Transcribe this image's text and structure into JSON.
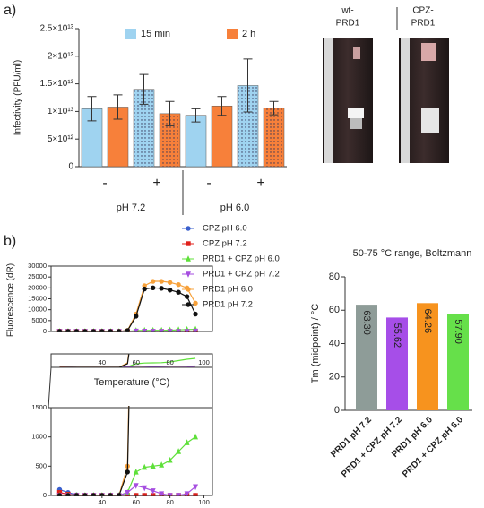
{
  "panel_labels": [
    "a)",
    "b)"
  ],
  "photo_labels": [
    [
      "wt-",
      "PRD1"
    ],
    [
      "CPZ-",
      "PRD1"
    ]
  ],
  "chart_data": [
    {
      "type": "bar",
      "ylabel": "Infectivity (PFU/ml)",
      "categories": [
        "-",
        "+",
        "-",
        "+"
      ],
      "groups": [
        "pH 7.2",
        "pH 6.0"
      ],
      "series": [
        {
          "name": "15 min",
          "color": "#9fd3f0",
          "values": [
            10500000000000,
            14000000000000,
            9300000000000,
            14700000000000
          ],
          "errors": [
            2200000000000,
            2700000000000,
            1200000000000,
            4800000000000
          ]
        },
        {
          "name": "2 h",
          "color": "#f7803a",
          "values": [
            10800000000000,
            9600000000000,
            11000000000000,
            10600000000000
          ],
          "errors": [
            2200000000000,
            2200000000000,
            1700000000000,
            1200000000000
          ]
        }
      ],
      "ylim": [
        0,
        25000000000000
      ],
      "yticks": [
        0,
        {
          "value": 5000000000000,
          "label": "5×10¹²"
        },
        {
          "value": 10000000000000,
          "label": "1×10¹³"
        },
        {
          "value": 15000000000000,
          "label": "1.5×10¹³"
        },
        {
          "value": 20000000000000,
          "label": "2×10¹³"
        },
        {
          "value": 25000000000000,
          "label": "2.5×10¹³"
        }
      ],
      "legend": "top"
    },
    {
      "type": "line",
      "xlabel": "Temperature (°C)",
      "ylabel": "Fluorescence (dR)",
      "x": [
        15,
        20,
        25,
        30,
        35,
        40,
        45,
        50,
        55,
        60,
        65,
        70,
        75,
        80,
        85,
        90,
        95
      ],
      "series": [
        {
          "name": "CPZ pH 6.0",
          "color": "#3a5fcd",
          "marker": "circle",
          "values": [
            100,
            50,
            10,
            0,
            0,
            0,
            0,
            0,
            0,
            0,
            0,
            0,
            0,
            0,
            0,
            0,
            0
          ]
        },
        {
          "name": "CPZ pH 7.2",
          "color": "#e0201b",
          "marker": "square",
          "values": [
            50,
            20,
            0,
            0,
            0,
            0,
            0,
            0,
            0,
            0,
            0,
            0,
            0,
            0,
            0,
            0,
            0
          ]
        },
        {
          "name": "PRD1 + CPZ pH 6.0",
          "color": "#5fe03a",
          "marker": "triangle",
          "values": [
            0,
            0,
            0,
            0,
            0,
            0,
            0,
            0,
            50,
            400,
            480,
            500,
            520,
            600,
            750,
            900,
            1000
          ]
        },
        {
          "name": "PRD1 + CPZ pH 7.2",
          "color": "#a64ee0",
          "marker": "triangle-down",
          "values": [
            0,
            0,
            0,
            0,
            0,
            0,
            0,
            0,
            50,
            170,
            130,
            80,
            30,
            0,
            0,
            30,
            150
          ]
        },
        {
          "name": "PRD1 pH 6.0",
          "color": "#f7a13a",
          "marker": "circle",
          "values": [
            0,
            0,
            0,
            0,
            0,
            0,
            0,
            0,
            500,
            8000,
            21000,
            23000,
            23000,
            22500,
            21500,
            20000,
            13000
          ]
        },
        {
          "name": "PRD1 pH 7.2",
          "color": "#111111",
          "marker": "circle",
          "values": [
            0,
            0,
            0,
            0,
            0,
            0,
            0,
            0,
            400,
            7000,
            19500,
            20000,
            19800,
            19000,
            18000,
            16000,
            8000
          ]
        }
      ],
      "xlim": [
        10,
        105
      ],
      "xticks": [
        40,
        60,
        80,
        100
      ],
      "ylim": [
        0,
        30000
      ],
      "yticks": [
        0,
        5000,
        10000,
        15000,
        20000,
        25000,
        30000
      ],
      "inset_ylim": [
        0,
        1500
      ],
      "inset_yticks": [
        0,
        500,
        1000,
        1500
      ],
      "legend": "upper right"
    },
    {
      "type": "bar",
      "title": "50-75 °C range, Boltzmann",
      "ylabel": "Tm (midpoint) / °C",
      "categories": [
        "PRD1 pH 7.2",
        "PRD1 + CPZ pH 7.2",
        "PRD1 pH 6.0",
        "PRD1 + CPZ pH 6.0"
      ],
      "values": [
        63.3,
        55.62,
        64.26,
        57.9
      ],
      "value_labels": [
        "63.30",
        "55.62",
        "64.26",
        "57.90"
      ],
      "colors": [
        "#8e9c98",
        "#a64ee8",
        "#f7931e",
        "#66e04a"
      ],
      "ylim": [
        0,
        80
      ],
      "yticks": [
        0,
        20,
        40,
        60,
        80
      ]
    }
  ]
}
